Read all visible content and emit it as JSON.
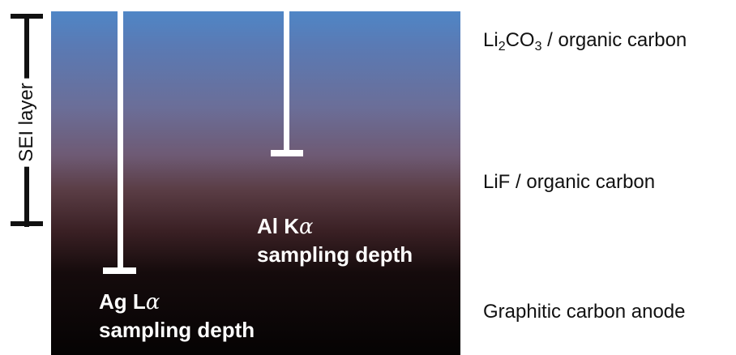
{
  "layers": {
    "top_prefix": "Li",
    "top_sub1": "2",
    "top_mid": "CO",
    "top_sub2": "3",
    "top_suffix": " / organic carbon",
    "middle": "LiF / organic carbon",
    "bottom": "Graphitic carbon anode"
  },
  "probes": {
    "al": {
      "line1_prefix": "Al K",
      "line1_greek": "α",
      "line2": "sampling depth"
    },
    "ag": {
      "line1_prefix": "Ag L",
      "line1_greek": "α",
      "line2": "sampling depth"
    }
  },
  "sei": {
    "label": "SEI layer"
  },
  "colors": {
    "surface": "#4f86c6",
    "middle": "#5a3d45",
    "anode": "#050303",
    "marker": "#ffffff"
  }
}
